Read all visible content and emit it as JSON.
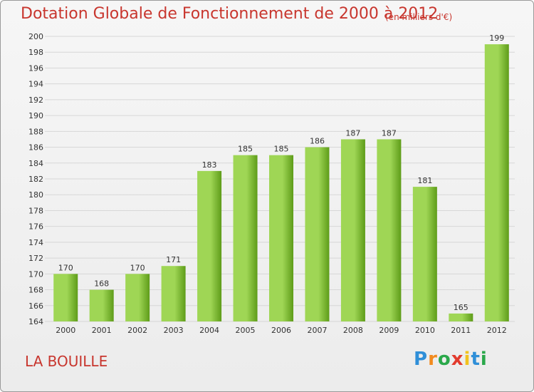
{
  "header": {
    "title": "Dotation Globale de Fonctionnement de 2000 à 2012",
    "subtitle": "(en milliers d'€)"
  },
  "footer": {
    "commune": "LA BOUILLE",
    "brand": [
      "P",
      "r",
      "o",
      "x",
      "i",
      "t",
      "i"
    ],
    "brand_colors": [
      "#2f8fd8",
      "#f28a1e",
      "#2aa84a",
      "#e23b2e",
      "#f2c21e",
      "#2f8fd8",
      "#2aa84a"
    ]
  },
  "colors": {
    "bar_light": "#9fd655",
    "bar_dark": "#5e9c19",
    "grid": "#d7d7d7",
    "axis_text": "#333333"
  },
  "chart_data": {
    "type": "bar",
    "categories": [
      "2000",
      "2001",
      "2002",
      "2003",
      "2004",
      "2005",
      "2006",
      "2007",
      "2008",
      "2009",
      "2010",
      "2011",
      "2012"
    ],
    "values": [
      170,
      168,
      170,
      171,
      183,
      185,
      185,
      186,
      187,
      187,
      181,
      165,
      199
    ],
    "data_labels": [
      "170",
      "168",
      "170",
      "171",
      "183",
      "185",
      "185",
      "186",
      "187",
      "187",
      "181",
      "165",
      "199"
    ],
    "yticks": [
      "164",
      "166",
      "168",
      "170",
      "172",
      "174",
      "176",
      "178",
      "180",
      "182",
      "184",
      "186",
      "188",
      "190",
      "192",
      "194",
      "196",
      "198",
      "200"
    ],
    "ylim": [
      164,
      200
    ],
    "title": "Dotation Globale de Fonctionnement de 2000 à 2012",
    "xlabel": "",
    "ylabel": "",
    "grid": true
  }
}
